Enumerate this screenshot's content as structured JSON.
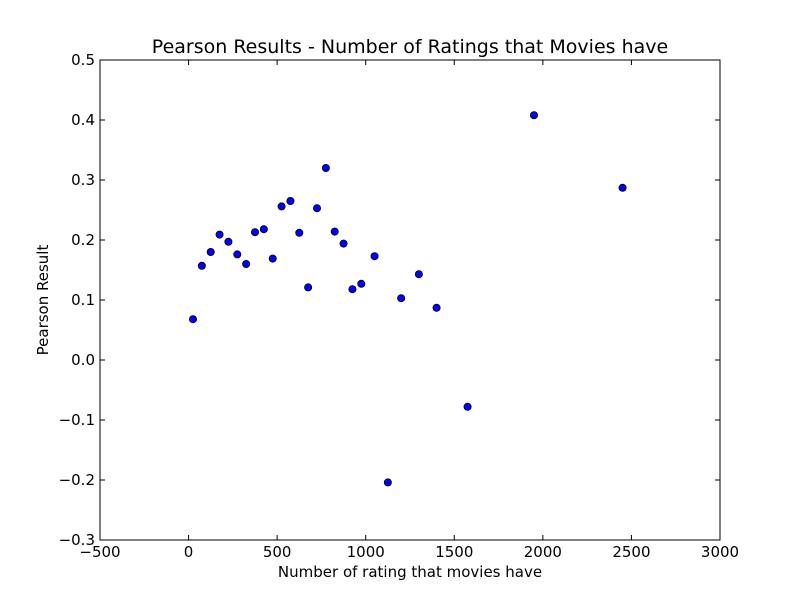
{
  "chart_data": {
    "type": "scatter",
    "title": "Pearson Results - Number of Ratings that Movies have",
    "xlabel": "Number of rating that movies have",
    "ylabel": "Pearson Result",
    "xlim": [
      -500,
      3000
    ],
    "ylim": [
      -0.3,
      0.5
    ],
    "grid": false,
    "x_ticks": [
      -500,
      0,
      500,
      1000,
      1500,
      2000,
      2500,
      3000
    ],
    "x_tick_labels": [
      "−500",
      "0",
      "500",
      "1000",
      "1500",
      "2000",
      "2500",
      "3000"
    ],
    "y_ticks": [
      -0.3,
      -0.2,
      -0.1,
      0.0,
      0.1,
      0.2,
      0.3,
      0.4,
      0.5
    ],
    "y_tick_labels": [
      "−0.3",
      "−0.2",
      "−0.1",
      "0.0",
      "0.1",
      "0.2",
      "0.3",
      "0.4",
      "0.5"
    ],
    "marker_color": "#0000ff",
    "points": [
      {
        "x": 25,
        "y": 0.068
      },
      {
        "x": 75,
        "y": 0.157
      },
      {
        "x": 125,
        "y": 0.18
      },
      {
        "x": 175,
        "y": 0.209
      },
      {
        "x": 225,
        "y": 0.197
      },
      {
        "x": 275,
        "y": 0.176
      },
      {
        "x": 325,
        "y": 0.16
      },
      {
        "x": 375,
        "y": 0.213
      },
      {
        "x": 425,
        "y": 0.218
      },
      {
        "x": 475,
        "y": 0.169
      },
      {
        "x": 525,
        "y": 0.256
      },
      {
        "x": 575,
        "y": 0.265
      },
      {
        "x": 625,
        "y": 0.212
      },
      {
        "x": 675,
        "y": 0.121
      },
      {
        "x": 725,
        "y": 0.253
      },
      {
        "x": 775,
        "y": 0.32
      },
      {
        "x": 825,
        "y": 0.214
      },
      {
        "x": 875,
        "y": 0.194
      },
      {
        "x": 925,
        "y": 0.118
      },
      {
        "x": 975,
        "y": 0.127
      },
      {
        "x": 1050,
        "y": 0.173
      },
      {
        "x": 1125,
        "y": -0.204
      },
      {
        "x": 1200,
        "y": 0.103
      },
      {
        "x": 1300,
        "y": 0.143
      },
      {
        "x": 1400,
        "y": 0.087
      },
      {
        "x": 1575,
        "y": -0.078
      },
      {
        "x": 1950,
        "y": 0.408
      },
      {
        "x": 2450,
        "y": 0.287
      }
    ]
  }
}
